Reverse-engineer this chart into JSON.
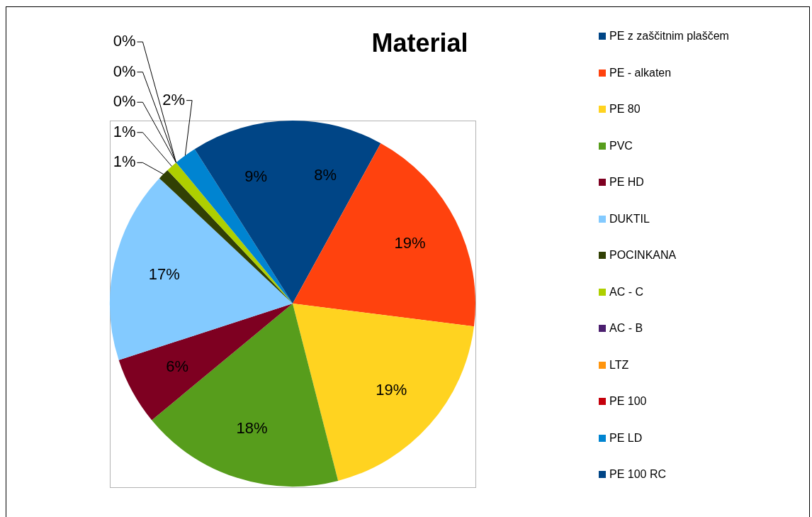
{
  "chart_data": {
    "type": "pie",
    "title": "Material",
    "categories": [
      "PE z zaščitnim plaščem",
      "PE - alkaten",
      "PE 80",
      "PVC",
      "PE HD",
      "DUKTIL",
      "POCINKANA",
      "AC - C",
      "AC - B",
      "LTZ",
      "PE 100",
      "PE LD",
      "PE 100 RC"
    ],
    "values": [
      8,
      19,
      19,
      18,
      6,
      17,
      1,
      1,
      0,
      0,
      0,
      2,
      9
    ],
    "colors": [
      "#004586",
      "#ff420e",
      "#ffd320",
      "#579d1c",
      "#7e0021",
      "#83caff",
      "#314004",
      "#aecf00",
      "#4b1f6f",
      "#ff950e",
      "#c5000b",
      "#0084d1",
      "#004586"
    ],
    "value_labels": [
      "8%",
      "19%",
      "19%",
      "18%",
      "6%",
      "17%",
      "1%",
      "1%",
      "0%",
      "0%",
      "0%",
      "2%",
      "9%"
    ],
    "legend": "right"
  }
}
